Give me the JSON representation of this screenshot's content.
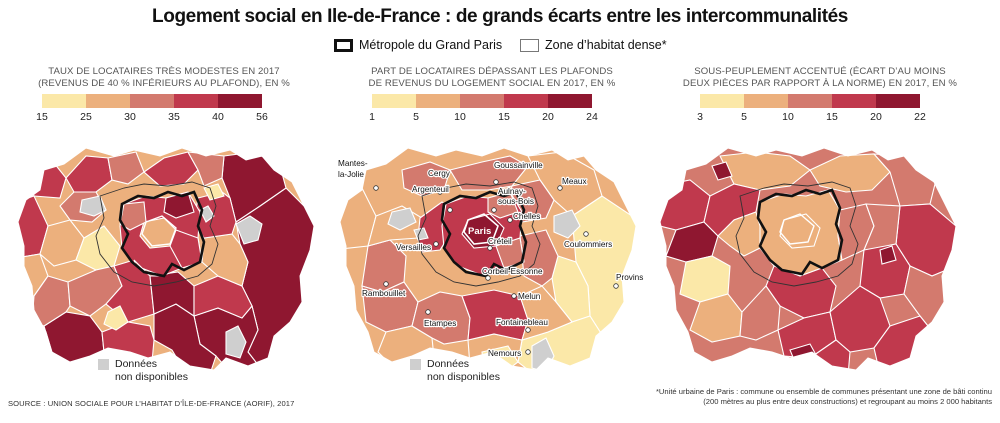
{
  "title": "Logement social en Ile-de-France : de grands écarts entre les intercommunalités",
  "legend": {
    "metropole": "Métropole du Grand Paris",
    "zone_dense": "Zone d’habitat dense*"
  },
  "colors": {
    "c1": "#fbe8a8",
    "c2": "#ecb07d",
    "c3": "#d37a6e",
    "c4": "#c0394d",
    "c5": "#8f1730",
    "na": "#cfcfcf",
    "border": "#ffffff",
    "outline": "#111111"
  },
  "panels": [
    {
      "title_line1": "TAUX DE LOCATAIRES TRÈS MODESTES EN 2017",
      "title_line2": "(REVENUS DE 40 % INFÉRIEURS AU PLAFOND), EN %",
      "ticks": [
        "15",
        "25",
        "30",
        "35",
        "40",
        "56"
      ]
    },
    {
      "title_line1": "PART DE LOCATAIRES DÉPASSANT LES PLAFONDS",
      "title_line2": "DE REVENUS DU LOGEMENT SOCIAL EN 2017, EN %",
      "ticks": [
        "1",
        "5",
        "10",
        "15",
        "20",
        "24"
      ]
    },
    {
      "title_line1": "SOUS-PEUPLEMENT ACCENTUÉ (ÉCART D’AU MOINS",
      "title_line2": "DEUX PIÈCES PAR RAPPORT À LA NORME) EN 2017, EN %",
      "ticks": [
        "3",
        "5",
        "10",
        "15",
        "20",
        "22"
      ]
    }
  ],
  "no_data": {
    "line1": "Données",
    "line2": "non disponibles"
  },
  "cities": {
    "mantes": "Mantes-",
    "mantes2": "la-Jolie",
    "cergy": "Cergy",
    "argenteuil": "Argenteuil",
    "goussainville": "Goussainville",
    "meaux": "Meaux",
    "aulnay": "Aulnay-",
    "aulnay2": "sous-Bois",
    "chelles": "Chelles",
    "paris": "Paris",
    "creteil": "Créteil",
    "versailles": "Versailles",
    "coulommiers": "Coulommiers",
    "rambouillet": "Rambouillet",
    "corbeil": "Corbeil-Essonne",
    "provins": "Provins",
    "melun": "Melun",
    "fontainebleau": "Fontainebleau",
    "etampes": "Etampes",
    "nemours": "Nemours"
  },
  "source": "SOURCE : UNION SOCIALE POUR L’HABITAT D’ÎLE-DE-FRANCE (AORIF), 2017",
  "footnote_line1": "*Unité urbaine de Paris : commune ou ensemble de communes présentant une zone de bâti continu",
  "footnote_line2": "(200 mètres au plus entre deux constructions) et regroupant au moins 2 000 habitants"
}
